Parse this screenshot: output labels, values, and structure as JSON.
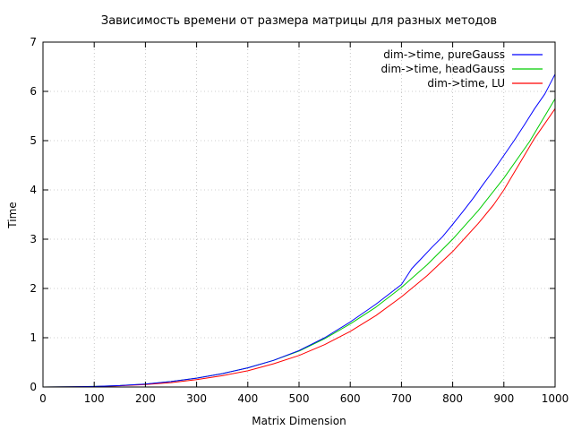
{
  "chart_data": {
    "type": "line",
    "title": "Зависимость времени от размера матрицы для разных методов",
    "xlabel": "Matrix Dimension",
    "ylabel": "Time",
    "xlim": [
      0,
      1000
    ],
    "ylim": [
      0,
      7
    ],
    "xticks": [
      0,
      100,
      200,
      300,
      400,
      500,
      600,
      700,
      800,
      900,
      1000
    ],
    "yticks": [
      0,
      1,
      2,
      3,
      4,
      5,
      6,
      7
    ],
    "xtick_labels": [
      "0",
      "100",
      "200",
      "300",
      "400",
      "500",
      "600",
      "700",
      "800",
      "900",
      "1000"
    ],
    "ytick_labels": [
      "0",
      "1",
      "2",
      "3",
      "4",
      "5",
      "6",
      "7"
    ],
    "grid": true,
    "legend_position": "top-right",
    "series": [
      {
        "name": "dim->time, pureGauss",
        "color": "#0000ff",
        "x": [
          0,
          50,
          100,
          150,
          200,
          250,
          300,
          350,
          400,
          450,
          500,
          550,
          600,
          650,
          700,
          720,
          740,
          760,
          780,
          800,
          820,
          840,
          860,
          880,
          900,
          920,
          940,
          960,
          980,
          1000
        ],
        "values": [
          0,
          0.003,
          0.01,
          0.03,
          0.06,
          0.11,
          0.18,
          0.27,
          0.39,
          0.54,
          0.74,
          1.0,
          1.32,
          1.68,
          2.08,
          2.4,
          2.62,
          2.84,
          3.05,
          3.3,
          3.56,
          3.83,
          4.12,
          4.4,
          4.7,
          5.0,
          5.32,
          5.65,
          5.95,
          6.35
        ]
      },
      {
        "name": "dim->time, headGauss",
        "color": "#00cc00",
        "x": [
          0,
          50,
          100,
          150,
          200,
          250,
          300,
          350,
          400,
          450,
          500,
          550,
          600,
          650,
          700,
          750,
          800,
          850,
          900,
          950,
          1000
        ],
        "values": [
          0,
          0.003,
          0.01,
          0.03,
          0.06,
          0.11,
          0.18,
          0.27,
          0.39,
          0.54,
          0.73,
          0.98,
          1.28,
          1.62,
          2.02,
          2.48,
          3.0,
          3.58,
          4.24,
          4.98,
          5.85
        ]
      },
      {
        "name": "dim->time, LU",
        "color": "#ff0000",
        "x": [
          0,
          50,
          100,
          150,
          200,
          250,
          300,
          350,
          400,
          450,
          500,
          550,
          600,
          650,
          700,
          750,
          800,
          850,
          880,
          900,
          920,
          940,
          960,
          980,
          1000
        ],
        "values": [
          0,
          0.002,
          0.008,
          0.025,
          0.05,
          0.09,
          0.15,
          0.23,
          0.33,
          0.47,
          0.64,
          0.86,
          1.13,
          1.45,
          1.83,
          2.26,
          2.75,
          3.32,
          3.7,
          4.0,
          4.35,
          4.7,
          5.05,
          5.35,
          5.65
        ]
      }
    ]
  }
}
